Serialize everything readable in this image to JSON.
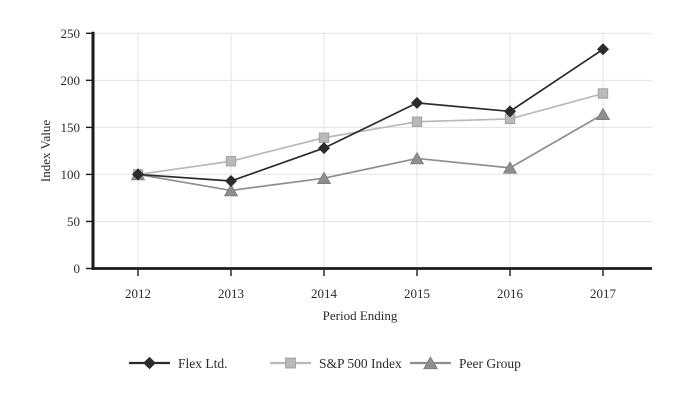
{
  "chart_data": {
    "type": "line",
    "x_categories": [
      "2012",
      "2013",
      "2014",
      "2015",
      "2016",
      "2017"
    ],
    "series": [
      {
        "name": "Flex Ltd.",
        "values": [
          100,
          93,
          128,
          176,
          167,
          233
        ],
        "color": "#2b2b2b",
        "marker": "diamond"
      },
      {
        "name": "S&P 500 Index",
        "values": [
          100,
          114,
          139,
          156,
          159,
          186
        ],
        "color": "#b9b9b9",
        "marker": "square"
      },
      {
        "name": "Peer Group",
        "values": [
          100,
          83,
          96,
          117,
          107,
          164
        ],
        "color": "#8e8e8e",
        "marker": "triangle"
      }
    ],
    "xlabel": "Period Ending",
    "ylabel": "Index Value",
    "ylim": [
      0,
      250
    ],
    "yticks": [
      0,
      50,
      100,
      150,
      200,
      250
    ],
    "grid": true,
    "legend_position": "bottom",
    "colors": {
      "gridline": "#e3e3e3",
      "axis": "#1a1a1a",
      "text": "#2b2b2b",
      "background": "#ffffff"
    }
  }
}
